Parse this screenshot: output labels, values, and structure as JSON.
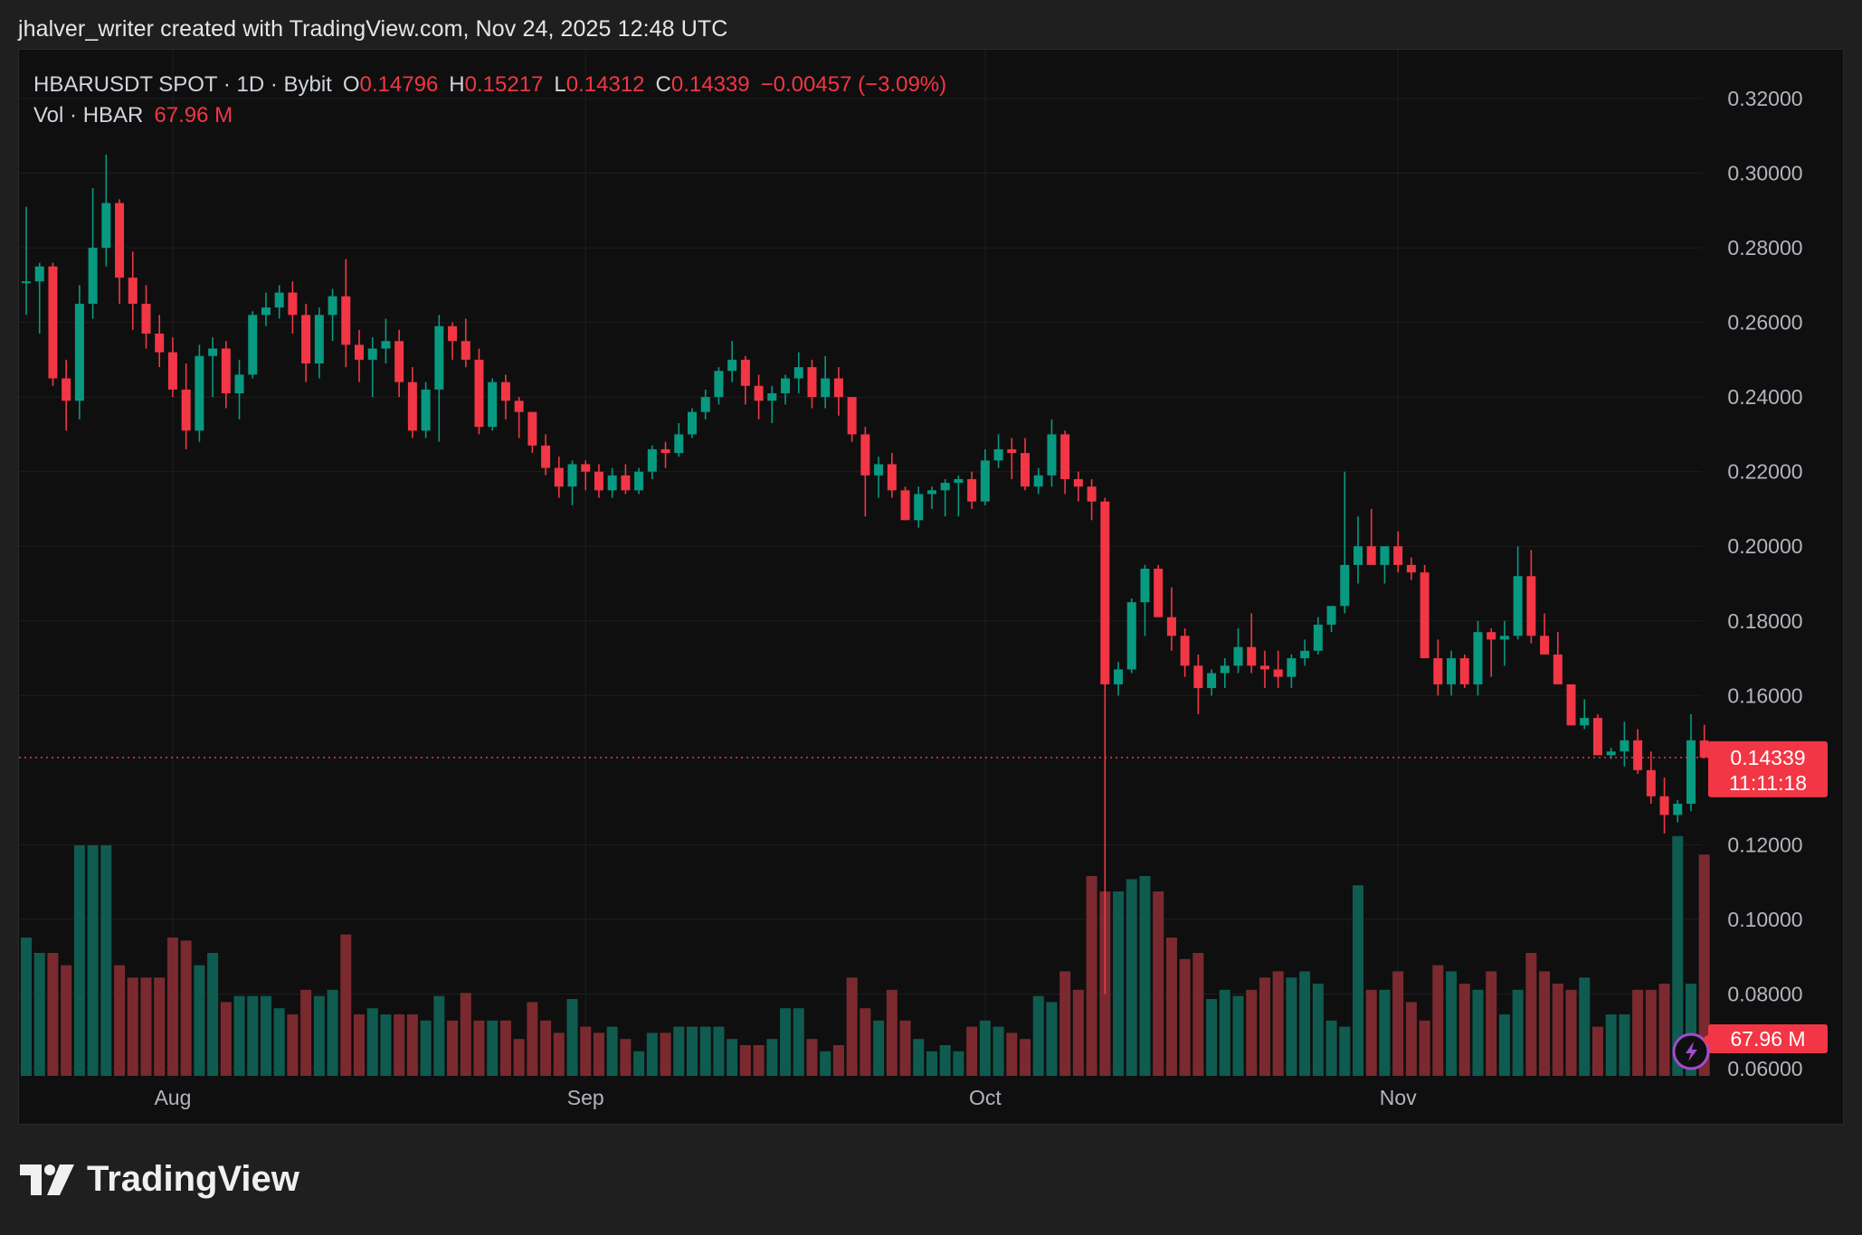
{
  "header": {
    "text": "jhalver_writer created with TradingView.com, Nov 24, 2025 12:48 UTC"
  },
  "legend": {
    "symbol": "HBARUSDT SPOT · 1D · Bybit",
    "o_key": "O",
    "o_val": "0.14796",
    "h_key": "H",
    "h_val": "0.15217",
    "l_key": "L",
    "l_val": "0.14312",
    "c_key": "C",
    "c_val": "0.14339",
    "change": "−0.00457 (−3.09%)",
    "vol_label": "Vol · HBAR",
    "vol_val": "67.96 M"
  },
  "price_label": {
    "price": "0.14339",
    "countdown": "11:11:18"
  },
  "volume_label": "67.96 M",
  "brand": {
    "name": "TradingView"
  },
  "colors": {
    "up": "#089981",
    "down": "#f23645",
    "up_volume": "#0f5b50",
    "down_volume": "#7a2a2f",
    "background": "#0f0f0f",
    "grid": "#1e1e1e",
    "axis_text": "#b2b5be"
  },
  "chart_data": {
    "type": "candlestick",
    "title": "HBARUSDT SPOT · 1D · Bybit",
    "ylim": [
      0.06,
      0.32
    ],
    "y_ticks": [
      "0.32000",
      "0.30000",
      "0.28000",
      "0.26000",
      "0.24000",
      "0.22000",
      "0.20000",
      "0.18000",
      "0.16000",
      "0.12000",
      "0.10000",
      "0.08000",
      "0.06000"
    ],
    "x_labels": [
      {
        "label": "Aug",
        "index": 11
      },
      {
        "label": "Sep",
        "index": 42
      },
      {
        "label": "Oct",
        "index": 72
      },
      {
        "label": "Nov",
        "index": 103
      }
    ],
    "current_price": 0.14339,
    "candles": [
      [
        0.271,
        0.291,
        0.262,
        0.271,
        45
      ],
      [
        0.271,
        0.276,
        0.257,
        0.275,
        40
      ],
      [
        0.275,
        0.276,
        0.243,
        0.245,
        40
      ],
      [
        0.245,
        0.25,
        0.231,
        0.239,
        36
      ],
      [
        0.239,
        0.27,
        0.234,
        0.265,
        75
      ],
      [
        0.265,
        0.296,
        0.261,
        0.28,
        75
      ],
      [
        0.28,
        0.305,
        0.275,
        0.292,
        75
      ],
      [
        0.292,
        0.293,
        0.265,
        0.272,
        36
      ],
      [
        0.272,
        0.279,
        0.258,
        0.265,
        32
      ],
      [
        0.265,
        0.27,
        0.253,
        0.257,
        32
      ],
      [
        0.257,
        0.262,
        0.248,
        0.252,
        32
      ],
      [
        0.252,
        0.256,
        0.24,
        0.242,
        45
      ],
      [
        0.242,
        0.249,
        0.226,
        0.231,
        44
      ],
      [
        0.231,
        0.254,
        0.228,
        0.251,
        36
      ],
      [
        0.251,
        0.256,
        0.24,
        0.253,
        40
      ],
      [
        0.253,
        0.255,
        0.237,
        0.241,
        24
      ],
      [
        0.241,
        0.25,
        0.234,
        0.246,
        26
      ],
      [
        0.246,
        0.263,
        0.245,
        0.262,
        26
      ],
      [
        0.262,
        0.268,
        0.259,
        0.264,
        26
      ],
      [
        0.264,
        0.27,
        0.261,
        0.268,
        22
      ],
      [
        0.268,
        0.271,
        0.257,
        0.262,
        20
      ],
      [
        0.262,
        0.265,
        0.244,
        0.249,
        28
      ],
      [
        0.249,
        0.264,
        0.245,
        0.262,
        26
      ],
      [
        0.262,
        0.269,
        0.255,
        0.267,
        28
      ],
      [
        0.267,
        0.277,
        0.248,
        0.254,
        46
      ],
      [
        0.254,
        0.258,
        0.244,
        0.25,
        20
      ],
      [
        0.25,
        0.256,
        0.24,
        0.253,
        22
      ],
      [
        0.253,
        0.261,
        0.249,
        0.255,
        20
      ],
      [
        0.255,
        0.258,
        0.24,
        0.244,
        20
      ],
      [
        0.244,
        0.248,
        0.229,
        0.231,
        20
      ],
      [
        0.231,
        0.244,
        0.229,
        0.242,
        18
      ],
      [
        0.242,
        0.262,
        0.228,
        0.259,
        26
      ],
      [
        0.259,
        0.26,
        0.25,
        0.255,
        18
      ],
      [
        0.255,
        0.261,
        0.248,
        0.25,
        27
      ],
      [
        0.25,
        0.253,
        0.23,
        0.232,
        18
      ],
      [
        0.232,
        0.245,
        0.231,
        0.244,
        18
      ],
      [
        0.244,
        0.246,
        0.234,
        0.239,
        18
      ],
      [
        0.239,
        0.24,
        0.229,
        0.236,
        12
      ],
      [
        0.236,
        0.236,
        0.225,
        0.227,
        24
      ],
      [
        0.227,
        0.23,
        0.219,
        0.221,
        18
      ],
      [
        0.221,
        0.224,
        0.213,
        0.216,
        14
      ],
      [
        0.216,
        0.223,
        0.211,
        0.222,
        25
      ],
      [
        0.222,
        0.223,
        0.215,
        0.22,
        16
      ],
      [
        0.22,
        0.222,
        0.213,
        0.215,
        14
      ],
      [
        0.215,
        0.221,
        0.213,
        0.219,
        16
      ],
      [
        0.219,
        0.222,
        0.214,
        0.215,
        12
      ],
      [
        0.215,
        0.221,
        0.214,
        0.22,
        8
      ],
      [
        0.22,
        0.227,
        0.218,
        0.226,
        14
      ],
      [
        0.226,
        0.228,
        0.221,
        0.225,
        14
      ],
      [
        0.225,
        0.233,
        0.224,
        0.23,
        16
      ],
      [
        0.23,
        0.237,
        0.229,
        0.236,
        16
      ],
      [
        0.236,
        0.242,
        0.234,
        0.24,
        16
      ],
      [
        0.24,
        0.248,
        0.238,
        0.247,
        16
      ],
      [
        0.247,
        0.255,
        0.244,
        0.25,
        12
      ],
      [
        0.25,
        0.251,
        0.238,
        0.243,
        10
      ],
      [
        0.243,
        0.246,
        0.234,
        0.239,
        10
      ],
      [
        0.239,
        0.243,
        0.233,
        0.241,
        12
      ],
      [
        0.241,
        0.246,
        0.238,
        0.245,
        22
      ],
      [
        0.245,
        0.252,
        0.241,
        0.248,
        22
      ],
      [
        0.248,
        0.25,
        0.237,
        0.24,
        12
      ],
      [
        0.24,
        0.251,
        0.237,
        0.245,
        8
      ],
      [
        0.245,
        0.248,
        0.235,
        0.24,
        10
      ],
      [
        0.24,
        0.239,
        0.228,
        0.23,
        32
      ],
      [
        0.23,
        0.232,
        0.208,
        0.219,
        22
      ],
      [
        0.219,
        0.224,
        0.213,
        0.222,
        18
      ],
      [
        0.222,
        0.225,
        0.213,
        0.215,
        28
      ],
      [
        0.215,
        0.216,
        0.207,
        0.207,
        18
      ],
      [
        0.207,
        0.216,
        0.205,
        0.214,
        12
      ],
      [
        0.214,
        0.216,
        0.21,
        0.215,
        8
      ],
      [
        0.215,
        0.218,
        0.208,
        0.217,
        10
      ],
      [
        0.217,
        0.219,
        0.208,
        0.218,
        8
      ],
      [
        0.218,
        0.22,
        0.21,
        0.212,
        16
      ],
      [
        0.212,
        0.226,
        0.211,
        0.223,
        18
      ],
      [
        0.223,
        0.23,
        0.221,
        0.226,
        16
      ],
      [
        0.226,
        0.229,
        0.218,
        0.225,
        14
      ],
      [
        0.225,
        0.229,
        0.215,
        0.216,
        12
      ],
      [
        0.216,
        0.221,
        0.214,
        0.219,
        26
      ],
      [
        0.219,
        0.234,
        0.216,
        0.23,
        24
      ],
      [
        0.23,
        0.231,
        0.214,
        0.218,
        34
      ],
      [
        0.218,
        0.22,
        0.212,
        0.216,
        28
      ],
      [
        0.216,
        0.218,
        0.207,
        0.212,
        65
      ],
      [
        0.212,
        0.213,
        0.08,
        0.163,
        60
      ],
      [
        0.163,
        0.169,
        0.16,
        0.167,
        60
      ],
      [
        0.167,
        0.186,
        0.166,
        0.185,
        64
      ],
      [
        0.185,
        0.195,
        0.176,
        0.194,
        65
      ],
      [
        0.194,
        0.195,
        0.181,
        0.181,
        60
      ],
      [
        0.181,
        0.189,
        0.172,
        0.176,
        45
      ],
      [
        0.176,
        0.178,
        0.165,
        0.168,
        38
      ],
      [
        0.168,
        0.171,
        0.155,
        0.162,
        40
      ],
      [
        0.162,
        0.167,
        0.16,
        0.166,
        25
      ],
      [
        0.166,
        0.17,
        0.162,
        0.168,
        28
      ],
      [
        0.168,
        0.178,
        0.166,
        0.173,
        26
      ],
      [
        0.173,
        0.182,
        0.166,
        0.168,
        28
      ],
      [
        0.168,
        0.172,
        0.162,
        0.167,
        32
      ],
      [
        0.167,
        0.172,
        0.162,
        0.165,
        34
      ],
      [
        0.165,
        0.171,
        0.162,
        0.17,
        32
      ],
      [
        0.17,
        0.175,
        0.168,
        0.172,
        34
      ],
      [
        0.172,
        0.181,
        0.171,
        0.179,
        30
      ],
      [
        0.179,
        0.183,
        0.177,
        0.184,
        18
      ],
      [
        0.184,
        0.22,
        0.182,
        0.195,
        16
      ],
      [
        0.195,
        0.208,
        0.19,
        0.2,
        62
      ],
      [
        0.2,
        0.21,
        0.196,
        0.195,
        28
      ],
      [
        0.195,
        0.2,
        0.19,
        0.2,
        28
      ],
      [
        0.2,
        0.204,
        0.193,
        0.195,
        34
      ],
      [
        0.195,
        0.197,
        0.191,
        0.193,
        24
      ],
      [
        0.193,
        0.195,
        0.17,
        0.17,
        18
      ],
      [
        0.17,
        0.175,
        0.16,
        0.163,
        36
      ],
      [
        0.163,
        0.172,
        0.16,
        0.17,
        34
      ],
      [
        0.17,
        0.171,
        0.162,
        0.163,
        30
      ],
      [
        0.163,
        0.18,
        0.16,
        0.177,
        28
      ],
      [
        0.177,
        0.178,
        0.165,
        0.175,
        34
      ],
      [
        0.175,
        0.18,
        0.168,
        0.176,
        20
      ],
      [
        0.176,
        0.2,
        0.175,
        0.192,
        28
      ],
      [
        0.192,
        0.199,
        0.174,
        0.176,
        40
      ],
      [
        0.176,
        0.182,
        0.171,
        0.171,
        34
      ],
      [
        0.171,
        0.177,
        0.165,
        0.163,
        30
      ],
      [
        0.163,
        0.163,
        0.154,
        0.152,
        28
      ],
      [
        0.152,
        0.159,
        0.151,
        0.154,
        32
      ],
      [
        0.154,
        0.155,
        0.144,
        0.144,
        16
      ],
      [
        0.144,
        0.146,
        0.143,
        0.145,
        20
      ],
      [
        0.145,
        0.153,
        0.141,
        0.148,
        20
      ],
      [
        0.148,
        0.151,
        0.139,
        0.14,
        28
      ],
      [
        0.14,
        0.145,
        0.131,
        0.133,
        28
      ],
      [
        0.133,
        0.138,
        0.123,
        0.128,
        30
      ],
      [
        0.128,
        0.132,
        0.126,
        0.131,
        78
      ],
      [
        0.131,
        0.155,
        0.129,
        0.148,
        30
      ],
      [
        0.14796,
        0.15217,
        0.14312,
        0.14339,
        72
      ]
    ]
  }
}
